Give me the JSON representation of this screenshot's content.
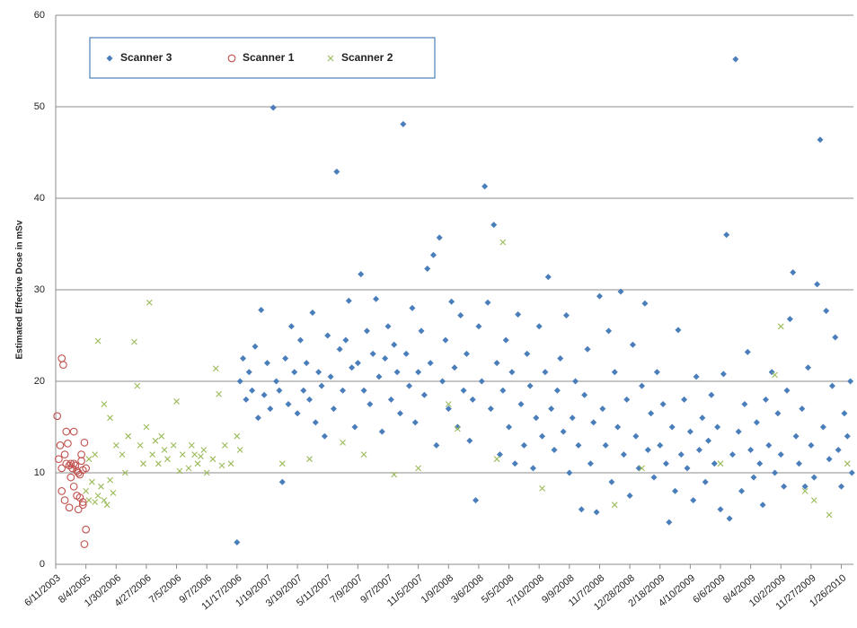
{
  "chart_data": {
    "type": "scatter",
    "ylabel": "Estimated Effective Dose in mSv",
    "ylim": [
      0,
      60
    ],
    "yticks": [
      0,
      10,
      20,
      30,
      40,
      50,
      60
    ],
    "grid": true,
    "xlim": [
      0,
      26.4
    ],
    "xticks": [
      {
        "value": 0,
        "label": "6/11/2003"
      },
      {
        "value": 1,
        "label": "8/4/2005"
      },
      {
        "value": 2,
        "label": "1/30/2006"
      },
      {
        "value": 3,
        "label": "4/27/2006"
      },
      {
        "value": 4,
        "label": "7/5/2006"
      },
      {
        "value": 5,
        "label": "9/7/2006"
      },
      {
        "value": 6,
        "label": "11/17/2006"
      },
      {
        "value": 7,
        "label": "1/19/2007"
      },
      {
        "value": 8,
        "label": "3/19/2007"
      },
      {
        "value": 9,
        "label": "5/11/2007"
      },
      {
        "value": 10,
        "label": "7/9/2007"
      },
      {
        "value": 11,
        "label": "9/7/2007"
      },
      {
        "value": 12,
        "label": "11/5/2007"
      },
      {
        "value": 13,
        "label": "1/9/2008"
      },
      {
        "value": 14,
        "label": "3/6/2008"
      },
      {
        "value": 15,
        "label": "5/5/2008"
      },
      {
        "value": 16,
        "label": "7/10/2008"
      },
      {
        "value": 17,
        "label": "9/9/2008"
      },
      {
        "value": 18,
        "label": "11/7/2008"
      },
      {
        "value": 19,
        "label": "12/28/2008"
      },
      {
        "value": 20,
        "label": "2/18/2009"
      },
      {
        "value": 21,
        "label": "4/10/2009"
      },
      {
        "value": 22,
        "label": "6/6/2009"
      },
      {
        "value": 23,
        "label": "8/4/2009"
      },
      {
        "value": 24,
        "label": "10/2/2009"
      },
      {
        "value": 25,
        "label": "11/27/2009"
      },
      {
        "value": 26,
        "label": "1/26/2010"
      }
    ],
    "legend": "top-left",
    "series": [
      {
        "name": "Scanner 3",
        "color": "#4a7ebb",
        "marker": "diamond",
        "x": [
          6,
          6.1,
          6.2,
          6.3,
          6.4,
          6.5,
          6.6,
          6.7,
          6.8,
          6.9,
          7,
          7.1,
          7.2,
          7.3,
          7.4,
          7.5,
          7.6,
          7.7,
          7.8,
          7.9,
          8,
          8.1,
          8.2,
          8.3,
          8.4,
          8.5,
          8.6,
          8.7,
          8.8,
          8.9,
          9,
          9.1,
          9.2,
          9.3,
          9.4,
          9.5,
          9.6,
          9.7,
          9.8,
          9.9,
          10,
          10.1,
          10.2,
          10.3,
          10.4,
          10.5,
          10.6,
          10.7,
          10.8,
          10.9,
          11,
          11.1,
          11.2,
          11.3,
          11.4,
          11.5,
          11.6,
          11.7,
          11.8,
          11.9,
          12,
          12.1,
          12.2,
          12.3,
          12.4,
          12.5,
          12.6,
          12.7,
          12.8,
          12.9,
          13,
          13.1,
          13.2,
          13.3,
          13.4,
          13.5,
          13.6,
          13.7,
          13.8,
          13.9,
          14,
          14.1,
          14.2,
          14.3,
          14.4,
          14.5,
          14.6,
          14.7,
          14.8,
          14.9,
          15,
          15.1,
          15.2,
          15.3,
          15.4,
          15.5,
          15.6,
          15.7,
          15.8,
          15.9,
          16,
          16.1,
          16.2,
          16.3,
          16.4,
          16.5,
          16.6,
          16.7,
          16.8,
          16.9,
          17,
          17.1,
          17.2,
          17.3,
          17.4,
          17.5,
          17.6,
          17.7,
          17.8,
          17.9,
          18,
          18.1,
          18.2,
          18.3,
          18.4,
          18.5,
          18.6,
          18.7,
          18.8,
          18.9,
          19,
          19.1,
          19.2,
          19.3,
          19.4,
          19.5,
          19.6,
          19.7,
          19.8,
          19.9,
          20,
          20.1,
          20.2,
          20.3,
          20.4,
          20.5,
          20.6,
          20.7,
          20.8,
          20.9,
          21,
          21.1,
          21.2,
          21.3,
          21.4,
          21.5,
          21.6,
          21.7,
          21.8,
          21.9,
          22,
          22.1,
          22.2,
          22.3,
          22.4,
          22.5,
          22.6,
          22.7,
          22.8,
          22.9,
          23,
          23.1,
          23.2,
          23.3,
          23.4,
          23.5,
          23.6,
          23.7,
          23.8,
          23.9,
          24,
          24.1,
          24.2,
          24.3,
          24.4,
          24.5,
          24.6,
          24.7,
          24.8,
          24.9,
          25,
          25.1,
          25.2,
          25.3,
          25.4,
          25.5,
          25.6,
          25.7,
          25.8,
          25.9,
          26,
          26.1,
          26.2,
          26.3,
          26.35
        ],
        "values": [
          2.4,
          20,
          22.5,
          18,
          21,
          19,
          23.8,
          16,
          27.8,
          18.5,
          22,
          17,
          49.9,
          20,
          19,
          9,
          22.5,
          17.5,
          26,
          21,
          16.5,
          24.5,
          19,
          22,
          18,
          27.5,
          15.5,
          21,
          19.5,
          14,
          25,
          20.5,
          17,
          42.9,
          23.5,
          19,
          24.5,
          28.8,
          21.5,
          15,
          22,
          31.7,
          19,
          25.5,
          17.5,
          23,
          29,
          20.5,
          14.5,
          22.5,
          26,
          18,
          24,
          21,
          16.5,
          48.1,
          23,
          19.5,
          28,
          15.5,
          21,
          25.5,
          18.5,
          32.3,
          22,
          33.8,
          13,
          35.7,
          20,
          24.5,
          17,
          28.7,
          21.5,
          15,
          27.2,
          19,
          23,
          13.5,
          18,
          7,
          26,
          20,
          41.3,
          28.6,
          17,
          37.1,
          22,
          12,
          19,
          24.5,
          15,
          21,
          11,
          27.3,
          17.5,
          13,
          23,
          19.5,
          10.5,
          16,
          26,
          14,
          21,
          31.4,
          17,
          12.5,
          19,
          22.5,
          14.5,
          27.2,
          10,
          16,
          20,
          13,
          6,
          18.5,
          23.5,
          11,
          15.5,
          5.7,
          29.3,
          17,
          13,
          25.5,
          9,
          21,
          15,
          29.8,
          12,
          18,
          7.5,
          24,
          14,
          10.5,
          19.5,
          28.5,
          12.5,
          16.5,
          9.5,
          21,
          13,
          17.5,
          11,
          4.6,
          15,
          8,
          25.6,
          12,
          18,
          10.5,
          14.5,
          7,
          20.5,
          12.5,
          16,
          9,
          13.5,
          18.5,
          11,
          15,
          6,
          20.8,
          36,
          5,
          12,
          55.2,
          14.5,
          8,
          17.5,
          23.2,
          12.5,
          9.5,
          15.5,
          11,
          6.5,
          18,
          13,
          21,
          10,
          16.5,
          12,
          8.5,
          19,
          26.8,
          31.9,
          14,
          11,
          17,
          8.5,
          21.5,
          13,
          9.5,
          30.6,
          46.4,
          15,
          27.7,
          11.5,
          19.5,
          24.8,
          12.5,
          8.5,
          16.5,
          14,
          20,
          10
        ]
      },
      {
        "name": "Scanner 1",
        "color": "#c0504d",
        "marker": "circle",
        "x": [
          0.05,
          0.1,
          0.15,
          0.2,
          0.25,
          0.2,
          0.3,
          0.35,
          0.35,
          0.4,
          0.45,
          0.5,
          0.55,
          0.6,
          0.65,
          0.6,
          0.7,
          0.75,
          0.8,
          0.85,
          0.2,
          0.3,
          0.45,
          0.7,
          0.8,
          0.75,
          0.9,
          0.85,
          0.95,
          0.9,
          0.95,
          1,
          1,
          0.5,
          0.6,
          0.9
        ],
        "values": [
          16.2,
          11.5,
          13,
          22.5,
          21.8,
          10.5,
          12,
          11,
          14.5,
          13.2,
          10.8,
          11,
          10.5,
          11,
          10.8,
          14.5,
          10.2,
          10,
          9.8,
          12,
          8,
          7,
          6.2,
          7.5,
          7.3,
          6,
          6.5,
          11.3,
          13.3,
          10.3,
          2.2,
          3.8,
          10.5,
          9.5,
          8.5,
          6.8
        ]
      },
      {
        "name": "Scanner 2",
        "color": "#9bbb59",
        "marker": "x",
        "x": [
          1,
          1.1,
          1.2,
          1.3,
          1.4,
          1.5,
          1.6,
          1.7,
          1.8,
          1.9,
          1.1,
          1.3,
          1.4,
          1.6,
          1.8,
          2,
          2.2,
          2.4,
          2.6,
          2.7,
          2.8,
          3,
          3.1,
          3.2,
          3.4,
          3.5,
          3.7,
          3.9,
          4,
          4.2,
          4.4,
          4.5,
          4.7,
          4.9,
          5,
          5.2,
          5.3,
          5.4,
          5.6,
          5.8,
          6,
          6.1,
          2.3,
          3.3,
          4.1,
          4.8,
          5.5,
          2.9,
          3.6,
          4.6,
          7.5,
          8.4,
          9.5,
          10.2,
          11.2,
          12,
          13,
          13.3,
          14.8,
          14.6,
          16.1,
          18.5,
          19.4,
          22,
          23.8,
          24,
          24.8,
          25.1,
          25.6,
          26.2
        ],
        "values": [
          8,
          7,
          9,
          6.8,
          7.5,
          8.5,
          7,
          6.5,
          9.2,
          7.8,
          11.5,
          12,
          24.4,
          17.5,
          16,
          13,
          12,
          14,
          24.3,
          19.5,
          13,
          15,
          28.6,
          12,
          11,
          14,
          11.5,
          13,
          17.8,
          12,
          10.5,
          13,
          11,
          12.5,
          10,
          11.5,
          21.4,
          18.6,
          13,
          11,
          14,
          12.5,
          10,
          13.5,
          10.2,
          11.8,
          10.8,
          11,
          12.5,
          12,
          11,
          11.5,
          13.3,
          12,
          9.8,
          10.5,
          17.5,
          14.8,
          35.2,
          11.5,
          8.3,
          6.5,
          10.5,
          11,
          20.7,
          26,
          8,
          7,
          5.4,
          11
        ]
      }
    ]
  }
}
